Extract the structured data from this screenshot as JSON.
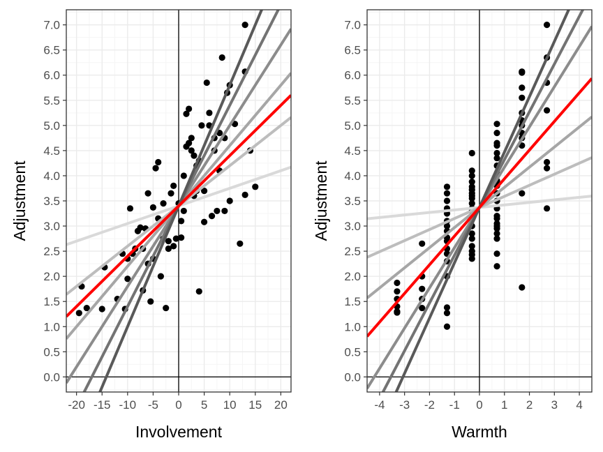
{
  "colors": {
    "panel_border": "#333333",
    "grid_major": "#ebebeb",
    "grid_minor": "#f5f5f5",
    "zero_line": "#000000",
    "point": "#000000",
    "highlight_line": "#ff0000",
    "line_shades": [
      "#d9d9d9",
      "#bdbdbd",
      "#a6a6a6",
      "#8c8c8c",
      "#737373",
      "#595959"
    ]
  },
  "chart_data": [
    {
      "type": "scatter",
      "xlabel": "Involvement",
      "ylabel": "Adjustment",
      "xlim": [
        -22,
        22
      ],
      "ylim": [
        -0.3,
        7.3
      ],
      "xticks": [
        -20,
        -15,
        -10,
        -5,
        0,
        5,
        10,
        15,
        20
      ],
      "xtick_labels": [
        "-20",
        "-15",
        "-10",
        "-5",
        "0",
        "5",
        "10",
        "15",
        "20"
      ],
      "yticks": [
        0,
        0.5,
        1,
        1.5,
        2,
        2.5,
        3,
        3.5,
        4,
        4.5,
        5,
        5.5,
        6,
        6.5,
        7
      ],
      "ytick_labels": [
        "0.0",
        "0.5",
        "1.0",
        "1.5",
        "2.0",
        "2.5",
        "3.0",
        "3.5",
        "4.0",
        "4.5",
        "5.0",
        "5.5",
        "6.0",
        "6.5",
        "7.0"
      ],
      "grid": true,
      "reference_lines": {
        "x": 0,
        "y": 0
      },
      "points": {
        "x": [
          -19,
          -18,
          -19.5,
          -15,
          -14.5,
          -12,
          -11,
          -10.5,
          -10,
          -10,
          -9.5,
          -9,
          -8.5,
          -8,
          -7.5,
          -7,
          -7,
          -6.5,
          -6,
          -6,
          -5.5,
          -5,
          -5,
          -4.5,
          -4,
          -4,
          -3.5,
          -3,
          -3,
          -2.5,
          -2,
          -2,
          -1.5,
          -1,
          -1,
          -0.5,
          0,
          0.5,
          0.5,
          1,
          1,
          1.5,
          1.5,
          2,
          2,
          2,
          2.5,
          2.5,
          3,
          3,
          3.5,
          3.5,
          4,
          4,
          4.5,
          5,
          5,
          5.5,
          6,
          6,
          6.5,
          7,
          7,
          7.5,
          8,
          8,
          8.5,
          9,
          9,
          9.5,
          10,
          10,
          11,
          12,
          13,
          13,
          13,
          14,
          15
        ],
        "y": [
          1.8,
          1.37,
          1.27,
          1.35,
          2.18,
          1.55,
          2.45,
          1.35,
          1.95,
          2.35,
          3.35,
          2.45,
          2.55,
          2.9,
          2.97,
          1.72,
          2.55,
          2.95,
          2.25,
          3.65,
          1.5,
          2.35,
          3.37,
          4.15,
          4.27,
          3.15,
          2.0,
          2.75,
          3.45,
          1.37,
          2.7,
          2.55,
          3.65,
          2.6,
          3.8,
          2.75,
          3.45,
          3.1,
          2.77,
          4.0,
          3.3,
          4.58,
          5.23,
          3.65,
          4.65,
          5.33,
          4.5,
          4.75,
          3.6,
          4.4,
          4.2,
          3.7,
          4.3,
          1.7,
          5.0,
          3.08,
          3.7,
          5.85,
          5.0,
          5.25,
          3.2,
          4.5,
          4.75,
          3.3,
          4.1,
          4.85,
          6.35,
          3.3,
          4.75,
          5.65,
          3.5,
          5.8,
          5.03,
          2.65,
          6.07,
          3.62,
          7.0,
          4.5,
          3.78
        ]
      },
      "lines": [
        {
          "intercept": 3.4,
          "slope": 0.035
        },
        {
          "intercept": 3.4,
          "slope": 0.08
        },
        {
          "intercept": 3.4,
          "slope": 0.12
        },
        {
          "intercept": 3.4,
          "slope": 0.16
        },
        {
          "intercept": 3.4,
          "slope": 0.2
        },
        {
          "intercept": 3.4,
          "slope": 0.24
        },
        {
          "intercept": 3.4,
          "slope": 0.1,
          "highlight": true
        }
      ]
    },
    {
      "type": "scatter",
      "xlabel": "Warmth",
      "ylabel": "Adjustment",
      "xlim": [
        -4.5,
        4.5
      ],
      "ylim": [
        -0.3,
        7.3
      ],
      "xticks": [
        -4,
        -3,
        -2,
        -1,
        0,
        1,
        2,
        3,
        4
      ],
      "xtick_labels": [
        "-4",
        "-3",
        "-2",
        "-1",
        "0",
        "1",
        "2",
        "3",
        "4"
      ],
      "yticks": [
        0,
        0.5,
        1,
        1.5,
        2,
        2.5,
        3,
        3.5,
        4,
        4.5,
        5,
        5.5,
        6,
        6.5,
        7
      ],
      "ytick_labels": [
        "0.0",
        "0.5",
        "1.0",
        "1.5",
        "2.0",
        "2.5",
        "3.0",
        "3.5",
        "4.0",
        "4.5",
        "5.0",
        "5.5",
        "6.0",
        "6.5",
        "7.0"
      ],
      "grid": true,
      "reference_lines": {
        "x": 0,
        "y": 0
      },
      "points": {
        "x": [
          -3.3,
          -3.3,
          -3.3,
          -3.3,
          -3.3,
          -3.3,
          -2.3,
          -2.3,
          -2.3,
          -2.3,
          -2.3,
          -1.3,
          -1.3,
          -1.3,
          -1.3,
          -1.3,
          -1.3,
          -1.3,
          -1.3,
          -1.3,
          -1.3,
          -1.3,
          -1.3,
          -1.3,
          -1.3,
          -1.3,
          -1.3,
          -1.3,
          -0.3,
          -0.3,
          -0.3,
          -0.3,
          -0.3,
          -0.3,
          -0.3,
          -0.3,
          -0.3,
          -0.3,
          -0.3,
          -0.3,
          -0.3,
          -0.3,
          -0.3,
          -0.3,
          -0.3,
          -0.3,
          -0.3,
          -0.3,
          -0.3,
          0.7,
          0.7,
          0.7,
          0.7,
          0.7,
          0.7,
          0.7,
          0.7,
          0.7,
          0.7,
          0.7,
          0.7,
          0.7,
          0.7,
          0.7,
          0.7,
          0.7,
          0.7,
          0.7,
          0.7,
          0.7,
          0.7,
          1.7,
          1.7,
          1.7,
          1.7,
          1.7,
          1.7,
          1.7,
          1.7,
          1.7,
          1.7,
          1.7,
          1.7,
          2.7,
          2.7,
          2.7,
          2.7,
          2.7,
          2.7,
          2.7
        ],
        "y": [
          1.87,
          1.7,
          1.55,
          1.4,
          1.3,
          1.28,
          2.65,
          2.0,
          1.75,
          1.55,
          1.37,
          3.78,
          3.65,
          3.5,
          3.35,
          3.25,
          3.0,
          2.77,
          2.55,
          2.3,
          2.0,
          1.38,
          1.27,
          1.0,
          2.7,
          2.45,
          3.1,
          2.9,
          4.45,
          4.1,
          4.0,
          3.78,
          3.65,
          3.55,
          3.45,
          3.35,
          3.2,
          3.0,
          2.85,
          2.75,
          2.6,
          2.5,
          2.43,
          2.35,
          3.72,
          3.88,
          3.6,
          3.3,
          3.15,
          5.03,
          4.85,
          4.65,
          4.45,
          4.35,
          4.2,
          4.05,
          3.9,
          3.8,
          3.65,
          3.5,
          3.35,
          3.2,
          3.05,
          2.95,
          2.85,
          2.45,
          2.2,
          4.6,
          3.15,
          2.75,
          3.0,
          6.07,
          6.05,
          5.75,
          5.55,
          5.25,
          5.0,
          4.75,
          4.6,
          3.65,
          1.78,
          4.85,
          5.1,
          7.0,
          6.35,
          5.85,
          5.3,
          4.27,
          4.15,
          3.35
        ]
      },
      "lines": [
        {
          "intercept": 3.37,
          "slope": 0.05
        },
        {
          "intercept": 3.37,
          "slope": 0.22
        },
        {
          "intercept": 3.37,
          "slope": 0.4
        },
        {
          "intercept": 3.37,
          "slope": 0.8
        },
        {
          "intercept": 3.37,
          "slope": 0.95
        },
        {
          "intercept": 3.37,
          "slope": 1.1
        },
        {
          "intercept": 3.37,
          "slope": 0.57,
          "highlight": true
        }
      ]
    }
  ]
}
